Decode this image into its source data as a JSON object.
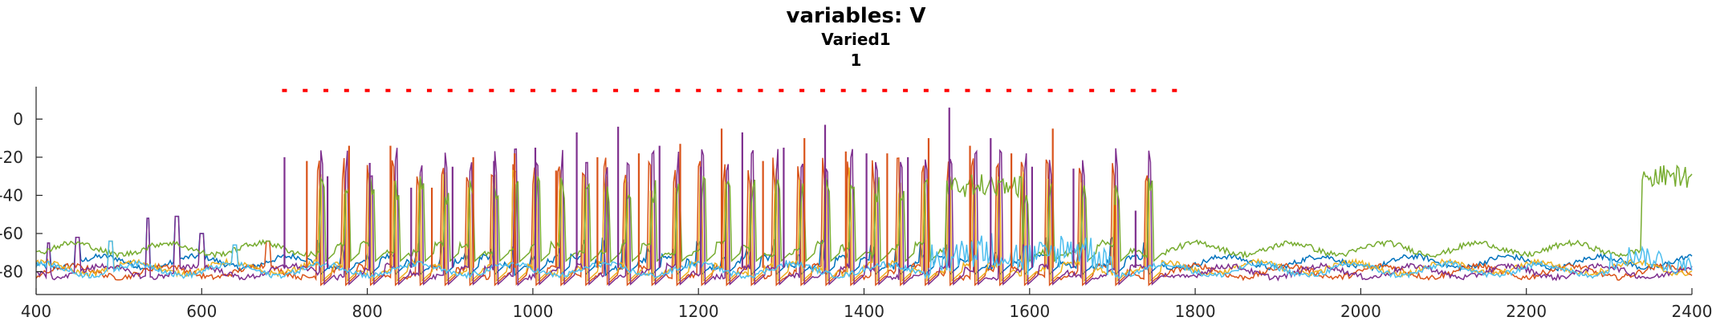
{
  "chart_data": {
    "type": "line",
    "title": "variables: V",
    "subtitle_lines": [
      "Varied1",
      "1"
    ],
    "xlabel": "",
    "ylabel": "",
    "xlim": [
      400,
      2400
    ],
    "ylim": [
      -92,
      17
    ],
    "xticks": [
      400,
      600,
      800,
      1000,
      1200,
      1400,
      1600,
      1800,
      2000,
      2200,
      2400
    ],
    "yticks": [
      0,
      -20,
      -40,
      -60,
      -80
    ],
    "grid": false,
    "stimulus_markers": {
      "color": "#ff0000",
      "y": 15,
      "x_start": 700,
      "x_end": 1780,
      "spacing": 25
    },
    "series": [
      {
        "color": "#0072bd",
        "baseline": -75,
        "spike_peak": -62
      },
      {
        "color": "#d95319",
        "baseline": -80,
        "spike_peak": -20
      },
      {
        "color": "#edb120",
        "baseline": -78,
        "spike_peak": -25
      },
      {
        "color": "#7e2f8e",
        "baseline": -80,
        "spike_peak": -15
      },
      {
        "color": "#77ac30",
        "baseline": -68,
        "spike_peak": -30
      },
      {
        "color": "#4dbeee",
        "baseline": -79,
        "spike_peak": -65
      }
    ],
    "spike_times": [
      740,
      770,
      800,
      830,
      860,
      890,
      920,
      950,
      975,
      1000,
      1030,
      1060,
      1085,
      1110,
      1140,
      1170,
      1200,
      1230,
      1260,
      1290,
      1320,
      1350,
      1380,
      1410,
      1440,
      1470,
      1500,
      1530,
      1560,
      1590,
      1620,
      1660,
      1700,
      1740
    ],
    "major_spikes": [
      {
        "x": 700,
        "y": -20
      },
      {
        "x": 727,
        "y": -22
      },
      {
        "x": 752,
        "y": -30
      },
      {
        "x": 778,
        "y": -14
      },
      {
        "x": 803,
        "y": -23
      },
      {
        "x": 828,
        "y": -14
      },
      {
        "x": 853,
        "y": -36
      },
      {
        "x": 878,
        "y": -36
      },
      {
        "x": 903,
        "y": -25
      },
      {
        "x": 928,
        "y": -20
      },
      {
        "x": 953,
        "y": -22
      },
      {
        "x": 978,
        "y": -18
      },
      {
        "x": 1003,
        "y": -15
      },
      {
        "x": 1028,
        "y": -27
      },
      {
        "x": 1053,
        "y": -7
      },
      {
        "x": 1078,
        "y": -20
      },
      {
        "x": 1103,
        "y": -4
      },
      {
        "x": 1128,
        "y": -18
      },
      {
        "x": 1153,
        "y": -14
      },
      {
        "x": 1178,
        "y": -13
      },
      {
        "x": 1203,
        "y": -25
      },
      {
        "x": 1228,
        "y": -5
      },
      {
        "x": 1253,
        "y": -7
      },
      {
        "x": 1278,
        "y": -22
      },
      {
        "x": 1303,
        "y": -15
      },
      {
        "x": 1328,
        "y": -10
      },
      {
        "x": 1353,
        "y": -3
      },
      {
        "x": 1378,
        "y": -17
      },
      {
        "x": 1403,
        "y": -18
      },
      {
        "x": 1428,
        "y": -18
      },
      {
        "x": 1453,
        "y": -20
      },
      {
        "x": 1478,
        "y": -10
      },
      {
        "x": 1503,
        "y": 6
      },
      {
        "x": 1528,
        "y": -14
      },
      {
        "x": 1553,
        "y": -10
      },
      {
        "x": 1578,
        "y": -18
      },
      {
        "x": 1603,
        "y": -25
      },
      {
        "x": 1628,
        "y": -5
      },
      {
        "x": 1653,
        "y": -26
      },
      {
        "x": 1703,
        "y": -45
      },
      {
        "x": 1728,
        "y": -48
      }
    ],
    "pre_stim_bumps": [
      {
        "x": 415,
        "y": -65
      },
      {
        "x": 450,
        "y": -62
      },
      {
        "x": 490,
        "y": -64
      },
      {
        "x": 535,
        "y": -52
      },
      {
        "x": 570,
        "y": -51
      },
      {
        "x": 600,
        "y": -60
      },
      {
        "x": 640,
        "y": -66
      },
      {
        "x": 680,
        "y": -64
      }
    ],
    "green_bursts": [
      {
        "x_start": 1500,
        "x_end": 1590,
        "level": -35
      },
      {
        "x_start": 2340,
        "x_end": 2400,
        "level": -30
      }
    ]
  }
}
